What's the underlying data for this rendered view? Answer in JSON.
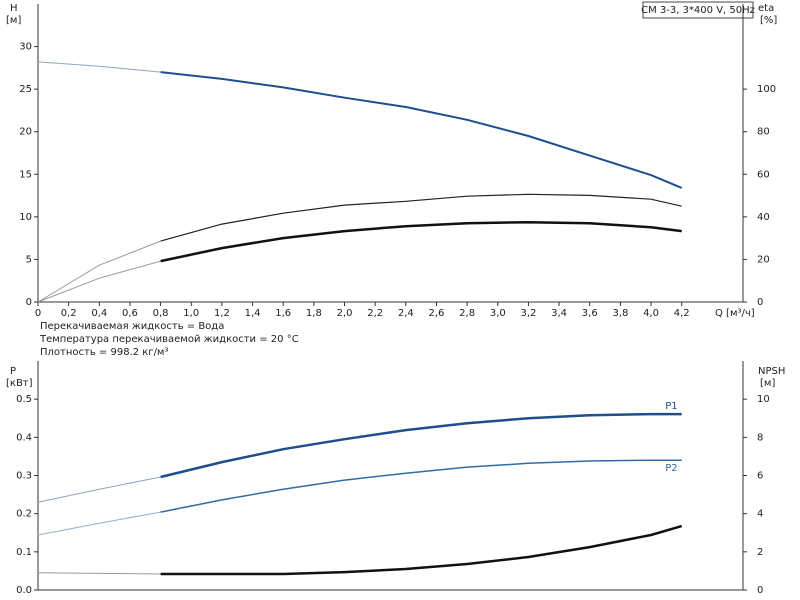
{
  "title": "CM 3-3, 3*400 V, 50Hz",
  "notes": [
    "Перекачиваемая жидкость = Вода",
    "Температура перекачиваемой жидкости = 20 °C",
    "Плотность = 998.2 кг/м³"
  ],
  "chart_data": [
    {
      "type": "line",
      "y_label": "H",
      "y_unit": "[м]",
      "y2_label": "eta",
      "y2_unit": "[%]",
      "x_label": "Q [м³/ч]",
      "x": [
        0,
        0.4,
        0.8,
        1.2,
        1.6,
        2.0,
        2.4,
        2.8,
        3.2,
        3.6,
        4.0,
        4.2
      ],
      "xlim": [
        0,
        4.6
      ],
      "xticks": [
        0,
        {
          "value": 0.2,
          "label": "0,2"
        },
        {
          "value": 0.4,
          "label": "0,4"
        },
        {
          "value": 0.6,
          "label": "0,6"
        },
        {
          "value": 0.8,
          "label": "0,8"
        },
        {
          "value": 1.0,
          "label": "1,0"
        },
        {
          "value": 1.2,
          "label": "1,2"
        },
        {
          "value": 1.4,
          "label": "1,4"
        },
        {
          "value": 1.6,
          "label": "1,6"
        },
        {
          "value": 1.8,
          "label": "1,8"
        },
        {
          "value": 2.0,
          "label": "2,0"
        },
        {
          "value": 2.2,
          "label": "2,2"
        },
        {
          "value": 2.4,
          "label": "2,4"
        },
        {
          "value": 2.6,
          "label": "2,6"
        },
        {
          "value": 2.8,
          "label": "2,8"
        },
        {
          "value": 3.0,
          "label": "3,0"
        },
        {
          "value": 3.2,
          "label": "3,2"
        },
        {
          "value": 3.4,
          "label": "3,4"
        },
        {
          "value": 3.6,
          "label": "3,6"
        },
        {
          "value": 3.8,
          "label": "3,8"
        },
        {
          "value": 4.0,
          "label": "4,0"
        },
        {
          "value": 4.2,
          "label": "4,2"
        }
      ],
      "ylim": [
        0,
        35
      ],
      "yticks": [
        0,
        5,
        10,
        15,
        20,
        25,
        30
      ],
      "y2lim": [
        0,
        140
      ],
      "y2ticks": [
        0,
        20,
        40,
        60,
        80,
        100
      ],
      "series": [
        {
          "color": "#8ea4c4",
          "line_width": 1,
          "values": [
            28.2,
            27.7,
            27.0,
            null,
            null,
            null,
            null,
            null,
            null,
            null,
            null,
            null
          ]
        },
        {
          "color": "#1f4e8c",
          "line_width": 2,
          "values": [
            null,
            null,
            27.0,
            26.2,
            25.2,
            24.0,
            22.9,
            21.4,
            19.5,
            17.2,
            14.9,
            13.4
          ]
        },
        {
          "color": "#9a9a9a",
          "line_width": 1,
          "axis": "y2",
          "values": [
            0,
            17.3,
            28.6,
            null,
            null,
            null,
            null,
            null,
            null,
            null,
            null,
            null
          ]
        },
        {
          "color": "#222222",
          "line_width": 1.2,
          "axis": "y2",
          "values": [
            null,
            null,
            28.6,
            36.6,
            41.7,
            45.5,
            47.3,
            49.7,
            50.6,
            50.1,
            48.3,
            45
          ]
        },
        {
          "color": "#9a9a9a",
          "line_width": 1,
          "axis": "y2",
          "values": [
            0,
            11.2,
            19.2,
            null,
            null,
            null,
            null,
            null,
            null,
            null,
            null,
            null
          ]
        },
        {
          "color": "#111111",
          "line_width": 2.5,
          "axis": "y2",
          "values": [
            null,
            null,
            19.2,
            25.3,
            30.0,
            33.3,
            35.6,
            37.0,
            37.5,
            37.0,
            35.1,
            33.3
          ]
        }
      ]
    },
    {
      "type": "line",
      "y_label": "P",
      "y_unit": "[кВт]",
      "y2_label": "NPSH",
      "y2_unit": "[м]",
      "x": [
        0,
        0.4,
        0.8,
        1.2,
        1.6,
        2.0,
        2.4,
        2.8,
        3.2,
        3.6,
        4.0,
        4.2
      ],
      "xlim": [
        0,
        4.6
      ],
      "ylim": [
        0,
        0.6
      ],
      "yticks": [
        {
          "value": 0,
          "label": "0.0"
        },
        0.1,
        0.2,
        0.3,
        0.4,
        0.5
      ],
      "y2lim": [
        0,
        12
      ],
      "y2ticks": [
        0,
        2,
        4,
        6,
        8,
        10
      ],
      "series": [
        {
          "color": "#8ea4c4",
          "line_width": 1,
          "values": [
            0.23,
            0.264,
            0.296,
            null,
            null,
            null,
            null,
            null,
            null,
            null,
            null,
            null
          ]
        },
        {
          "name": "P1",
          "color": "#1f4e8c",
          "line_width": 2.5,
          "values": [
            null,
            null,
            0.296,
            0.335,
            0.369,
            0.395,
            0.419,
            0.437,
            0.45,
            0.458,
            0.461,
            0.461
          ]
        },
        {
          "color": "#8fb0d0",
          "line_width": 1,
          "values": [
            0.144,
            0.175,
            0.204,
            null,
            null,
            null,
            null,
            null,
            null,
            null,
            null,
            null
          ]
        },
        {
          "name": "P2",
          "color": "#2e6da4",
          "line_width": 1.5,
          "values": [
            null,
            null,
            0.204,
            0.236,
            0.264,
            0.288,
            0.306,
            0.322,
            0.332,
            0.338,
            0.34,
            0.34
          ]
        },
        {
          "color": "#9a9a9a",
          "line_width": 1,
          "axis": "y2",
          "values": [
            0.9,
            0.87,
            0.84,
            null,
            null,
            null,
            null,
            null,
            null,
            null,
            null,
            null
          ]
        },
        {
          "color": "#111111",
          "line_width": 2.5,
          "axis": "y2",
          "values": [
            null,
            null,
            0.84,
            0.84,
            0.84,
            0.94,
            1.1,
            1.36,
            1.73,
            2.25,
            2.88,
            3.35
          ]
        }
      ]
    }
  ]
}
